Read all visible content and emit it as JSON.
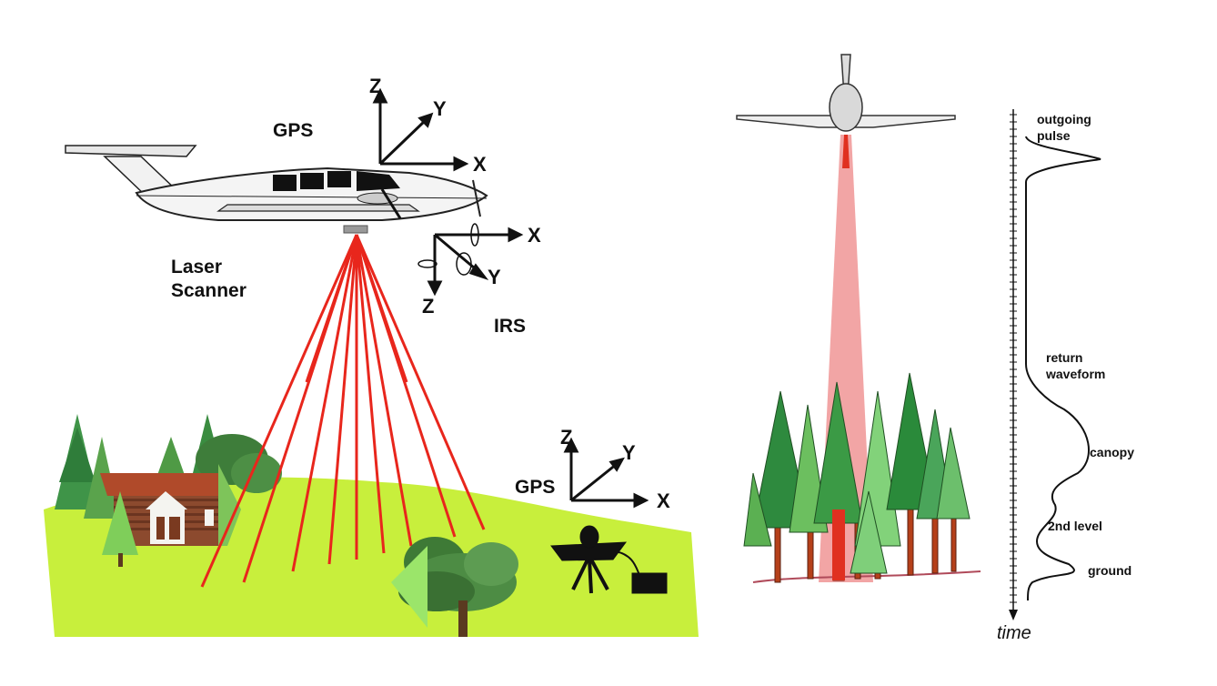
{
  "left_panel": {
    "labels": {
      "gps_aircraft": "GPS",
      "laser_scanner_line1": "Laser",
      "laser_scanner_line2": "Scanner",
      "irs": "IRS",
      "gps_ground": "GPS"
    },
    "aircraft_axes": {
      "z": "Z",
      "y": "Y",
      "x": "X"
    },
    "irs_axes": {
      "x": "X",
      "y": "Y",
      "z": "Z"
    },
    "ground_axes": {
      "z": "Z",
      "y": "Y",
      "x": "X"
    },
    "colors": {
      "laser": "#e8261c",
      "grass": "#c8ef3c",
      "sky": "#ffffff"
    }
  },
  "right_panel": {
    "waveform_labels": {
      "outgoing_line1": "outgoing",
      "outgoing_line2": "pulse",
      "return_line1": "return",
      "return_line2": "waveform",
      "canopy": "canopy",
      "second_level": "2nd level",
      "ground": "ground",
      "time_axis": "time"
    },
    "colors": {
      "beam": "#f2a5a5",
      "beam_core": "#e03020",
      "tree_dark": "#2e8a3e",
      "tree_light": "#7ccf7c",
      "trunk": "#b5401a"
    }
  }
}
